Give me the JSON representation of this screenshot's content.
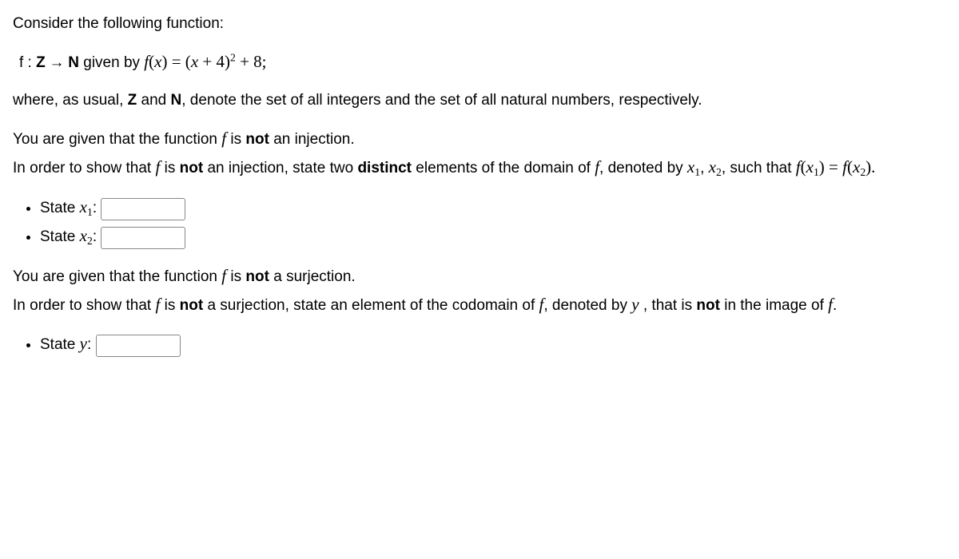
{
  "intro": "Consider the following function:",
  "func_line": {
    "prefix_f": "f",
    "colon": " : ",
    "Z": "Z",
    "arrow": " → ",
    "N": "N",
    "given_by": " given by ",
    "fx": "f",
    "paren_x": "(x) = (x + 4)",
    "exp": "2",
    "tail": " + 8;"
  },
  "where": "where, as usual, ",
  "Z2": "Z",
  "and": " and ",
  "N2": "N",
  "where_tail": ", denote the set of all integers and the set of all natural numbers, respectively.",
  "inj1a": "You are given that the function ",
  "f1": "f",
  "inj1b": " is ",
  "not1": "not",
  "inj1c": " an injection.",
  "inj2a": "In order to show that ",
  "f2": "f",
  "inj2b": " is ",
  "not2": "not",
  "inj2c": " an injection, state two ",
  "distinct": "distinct",
  "inj2d": " elements of the domain of ",
  "f3": "f",
  "inj2e": ", denoted by ",
  "x1a": "x",
  "s1a": "1",
  "comma": ", ",
  "x2a": "x",
  "s2a": "2",
  "inj2f": ", such that ",
  "f4": "f",
  "px1": "(x",
  "s1b": "1",
  "eq": ") = ",
  "f5": "f",
  "px2": "(x",
  "s2b": "2",
  "close": ").",
  "state": "State ",
  "x1c": "x",
  "s1c": "1",
  "x2c": "x",
  "s2c": "2",
  "colon2": ":",
  "sur1a": "You are given that the function ",
  "f6": "f",
  "sur1b": " is ",
  "not3": "not",
  "sur1c": " a surjection.",
  "sur2a": "In order to show that ",
  "f7": "f",
  "sur2b": " is ",
  "not4": "not",
  "sur2c": " a surjection, state an element of the codomain of ",
  "f8": "f",
  "sur2d": ", denoted by ",
  "y1": "y",
  "sur2e": " , that is ",
  "not5": "not",
  "sur2f": " in the image of ",
  "f9": "f",
  "period": ".",
  "y2": "y"
}
